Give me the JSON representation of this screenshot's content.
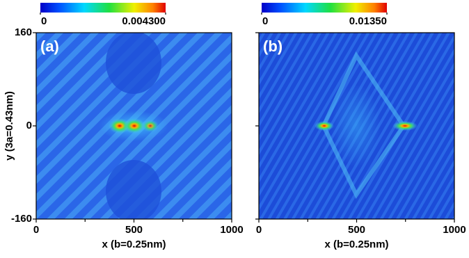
{
  "chart_data": [
    {
      "type": "heatmap",
      "panel_label": "(a)",
      "colorbar": {
        "clim": [
          0,
          0.0043
        ],
        "ticks": [
          0,
          {
            "value": 0.0043,
            "label": "0.004300"
          }
        ]
      },
      "xlim": [
        0,
        1000
      ],
      "xticks": [
        0,
        500,
        1000
      ],
      "xminorticks": [
        250,
        750
      ],
      "ylim": [
        -160,
        160
      ],
      "yticks": [
        -160,
        0,
        160
      ],
      "ytick_labels": true,
      "xlabel": "x (b=0.25nm)",
      "ylabel": "y (3a=0.43nm)"
    },
    {
      "type": "heatmap",
      "panel_label": "(b)",
      "colorbar": {
        "clim": [
          0,
          0.0135
        ],
        "ticks": [
          0,
          {
            "value": 0.0135,
            "label": "0.01350"
          }
        ]
      },
      "xlim": [
        0,
        1000
      ],
      "xticks": [
        0,
        500,
        1000
      ],
      "xminorticks": [
        250,
        750
      ],
      "ylim": [
        -160,
        160
      ],
      "yticks": [
        -160,
        0,
        160
      ],
      "ytick_labels": false,
      "xlabel": "x (b=0.25nm)"
    }
  ]
}
